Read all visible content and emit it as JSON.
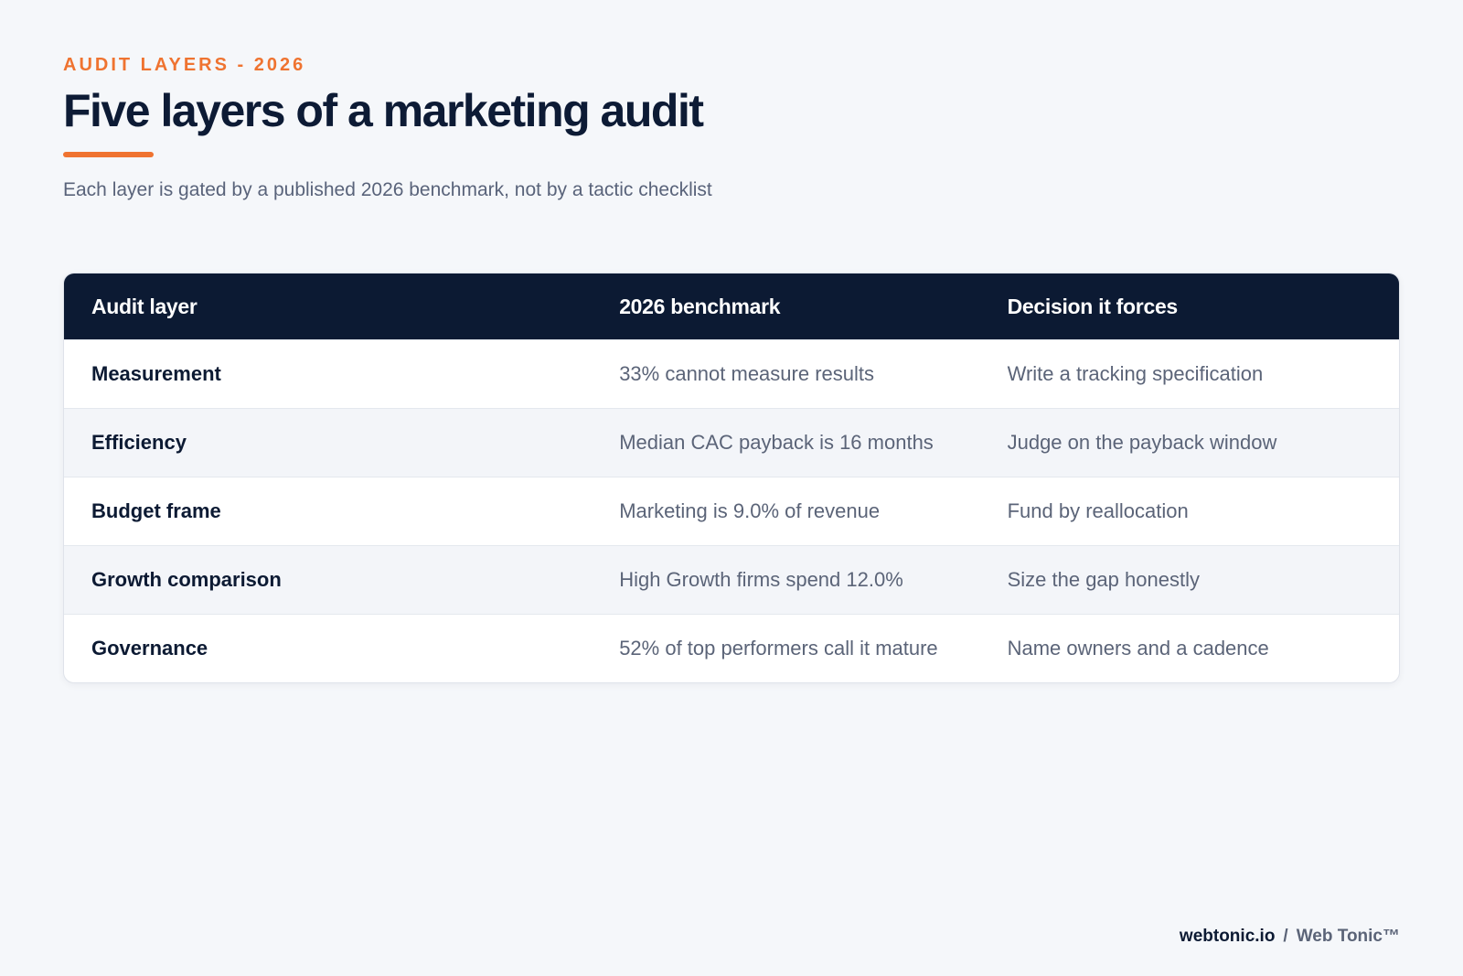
{
  "eyebrow": "AUDIT LAYERS - 2026",
  "title": "Five layers of a marketing audit",
  "subtitle": "Each layer is gated by a published 2026 benchmark, not by a tactic checklist",
  "table": {
    "columns": [
      "Audit layer",
      "2026 benchmark",
      "Decision it forces"
    ],
    "rows": [
      {
        "layer": "Measurement",
        "benchmark": "33% cannot measure results",
        "decision": "Write a tracking specification"
      },
      {
        "layer": "Efficiency",
        "benchmark": "Median CAC payback is 16 months",
        "decision": "Judge on the payback window"
      },
      {
        "layer": "Budget frame",
        "benchmark": "Marketing is 9.0% of revenue",
        "decision": "Fund by reallocation"
      },
      {
        "layer": "Growth comparison",
        "benchmark": "High Growth firms spend 12.0%",
        "decision": "Size the gap honestly"
      },
      {
        "layer": "Governance",
        "benchmark": "52% of top performers call it mature",
        "decision": "Name owners and a cadence"
      }
    ]
  },
  "footer": {
    "site": "webtonic.io",
    "separator": "/",
    "brand": "Web Tonic™"
  },
  "colors": {
    "accent": "#ef7330",
    "navy": "#0c1a33",
    "background": "#f5f7fa",
    "alt_row": "#f3f5f9"
  }
}
